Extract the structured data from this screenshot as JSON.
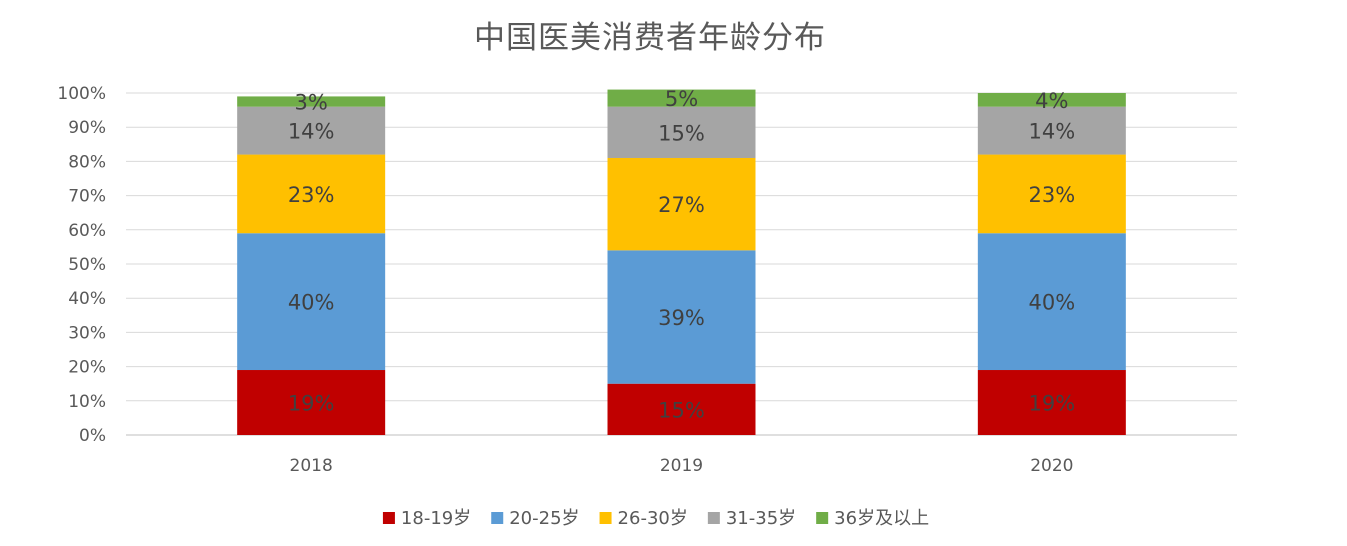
{
  "chart_data": {
    "type": "bar",
    "stacked": true,
    "percent_stacked": true,
    "title": "中国医美消费者年龄分布",
    "categories": [
      "2018",
      "2019",
      "2020"
    ],
    "series": [
      {
        "name": "18-19岁",
        "values": [
          19,
          15,
          19
        ],
        "labels": [
          "19%",
          "15%",
          "19%"
        ],
        "color": "#C00000"
      },
      {
        "name": "20-25岁",
        "values": [
          40,
          39,
          40
        ],
        "labels": [
          "40%",
          "39%",
          "40%"
        ],
        "color": "#5B9BD5"
      },
      {
        "name": "26-30岁",
        "values": [
          23,
          27,
          23
        ],
        "labels": [
          "23%",
          "27%",
          "23%"
        ],
        "color": "#FFC000"
      },
      {
        "name": "31-35岁",
        "values": [
          14,
          15,
          14
        ],
        "labels": [
          "14%",
          "15%",
          "14%"
        ],
        "color": "#A5A5A5"
      },
      {
        "name": "36岁及以上",
        "values": [
          3,
          5,
          4
        ],
        "labels": [
          "3%",
          "5%",
          "4%"
        ],
        "color": "#70AD47"
      }
    ],
    "ylim": [
      0,
      100
    ],
    "yticks": [
      "0%",
      "10%",
      "20%",
      "30%",
      "40%",
      "50%",
      "60%",
      "70%",
      "80%",
      "90%",
      "100%"
    ],
    "grid": true,
    "legend_position": "bottom",
    "xlabel": "",
    "ylabel": ""
  }
}
